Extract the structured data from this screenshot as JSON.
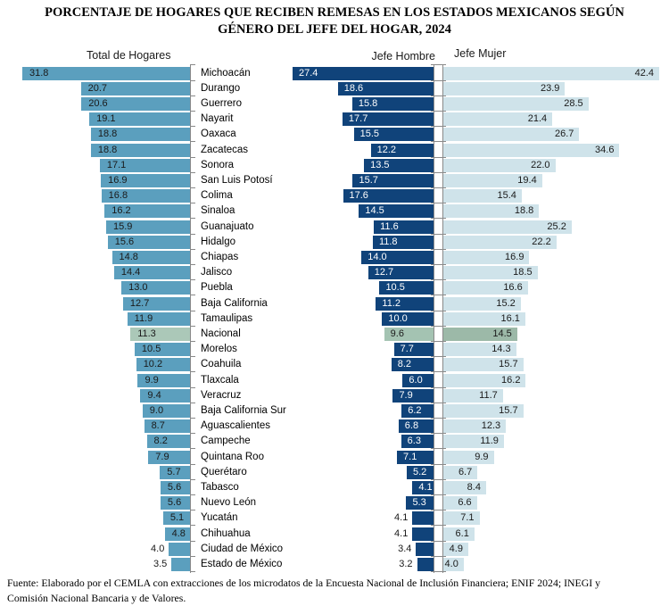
{
  "title_line1": "PORCENTAJE DE HOGARES QUE RECIBEN REMESAS EN LOS ESTADOS MEXICANOS SEGÚN",
  "title_line2": "GÉNERO DEL JEFE DEL HOGAR, 2024",
  "headers": {
    "total": "Total de Hogares",
    "hombre": "Jefe Hombre",
    "mujer": "Jefe Mujer"
  },
  "footer": {
    "line1": "Fuente: Elaborado por el CEMLA con extracciones de los microdatos de la Encuesta Nacional de Inclusión Financiera; ENIF 2024; INEGI y",
    "line2": "Comisión Nacional Bancaria y de Valores."
  },
  "colors": {
    "total_bar": "#5b9fbe",
    "hombre_bar": "#10437a",
    "mujer_bar": "#cfe3ea",
    "nacional_total_bar": "#abc8b8",
    "nacional_hombre_bar": "#a4c3b2",
    "nacional_mujer_bar": "#9cb9a8",
    "axis": "#898989",
    "value_text_dark": "#1a1a1a",
    "value_text_light": "#ffffff"
  },
  "chart_data": {
    "type": "bar",
    "orientation": "horizontal",
    "title": "Porcentaje de hogares que reciben remesas en los estados mexicanos según género del jefe del hogar, 2024",
    "panels": [
      "Total de Hogares",
      "Jefe Hombre",
      "Jefe Mujer"
    ],
    "unit": "percent",
    "categories": [
      "Michoacán",
      "Durango",
      "Guerrero",
      "Nayarit",
      "Oaxaca",
      "Zacatecas",
      "Sonora",
      "San Luis Potosí",
      "Colima",
      "Sinaloa",
      "Guanajuato",
      "Hidalgo",
      "Chiapas",
      "Jalisco",
      "Puebla",
      "Baja California",
      "Tamaulipas",
      "Nacional",
      "Morelos",
      "Coahuila",
      "Tlaxcala",
      "Veracruz",
      "Baja California Sur",
      "Aguascalientes",
      "Campeche",
      "Quintana Roo",
      "Querétaro",
      "Tabasco",
      "Nuevo León",
      "Yucatán",
      "Chihuahua",
      "Ciudad de México",
      "Estado de México"
    ],
    "series": [
      {
        "name": "Total de Hogares",
        "values": [
          31.8,
          20.7,
          20.6,
          19.1,
          18.8,
          18.8,
          17.1,
          16.9,
          16.8,
          16.2,
          15.9,
          15.6,
          14.8,
          14.4,
          13.0,
          12.7,
          11.9,
          11.3,
          10.5,
          10.2,
          9.9,
          9.4,
          9.0,
          8.7,
          8.2,
          7.9,
          5.7,
          5.6,
          5.6,
          5.1,
          4.8,
          4.0,
          3.5
        ]
      },
      {
        "name": "Jefe Hombre",
        "values": [
          27.4,
          18.6,
          15.8,
          17.7,
          15.5,
          12.2,
          13.5,
          15.7,
          17.6,
          14.5,
          11.6,
          11.8,
          14.0,
          12.7,
          10.5,
          11.2,
          10.0,
          9.6,
          7.7,
          8.2,
          6.0,
          7.9,
          6.2,
          6.8,
          6.3,
          7.1,
          5.2,
          4.1,
          5.3,
          4.1,
          4.1,
          3.4,
          3.2
        ]
      },
      {
        "name": "Jefe Mujer",
        "values": [
          42.4,
          23.9,
          28.5,
          21.4,
          26.7,
          34.6,
          22.0,
          19.4,
          15.4,
          18.8,
          25.2,
          22.2,
          16.9,
          18.5,
          16.6,
          15.2,
          16.1,
          14.5,
          14.3,
          15.7,
          16.2,
          11.7,
          15.7,
          12.3,
          11.9,
          9.9,
          6.7,
          8.4,
          6.6,
          7.1,
          6.1,
          4.9,
          4.0
        ]
      }
    ],
    "highlight_category": "Nacional",
    "value_labels_outside": {
      "total": [
        "Ciudad de México",
        "Estado de México"
      ],
      "hombre": [
        "Yucatán",
        "Chihuahua",
        "Ciudad de México",
        "Estado de México"
      ]
    },
    "grid": false,
    "legend": "none",
    "axis_ticks": "category boundaries"
  }
}
